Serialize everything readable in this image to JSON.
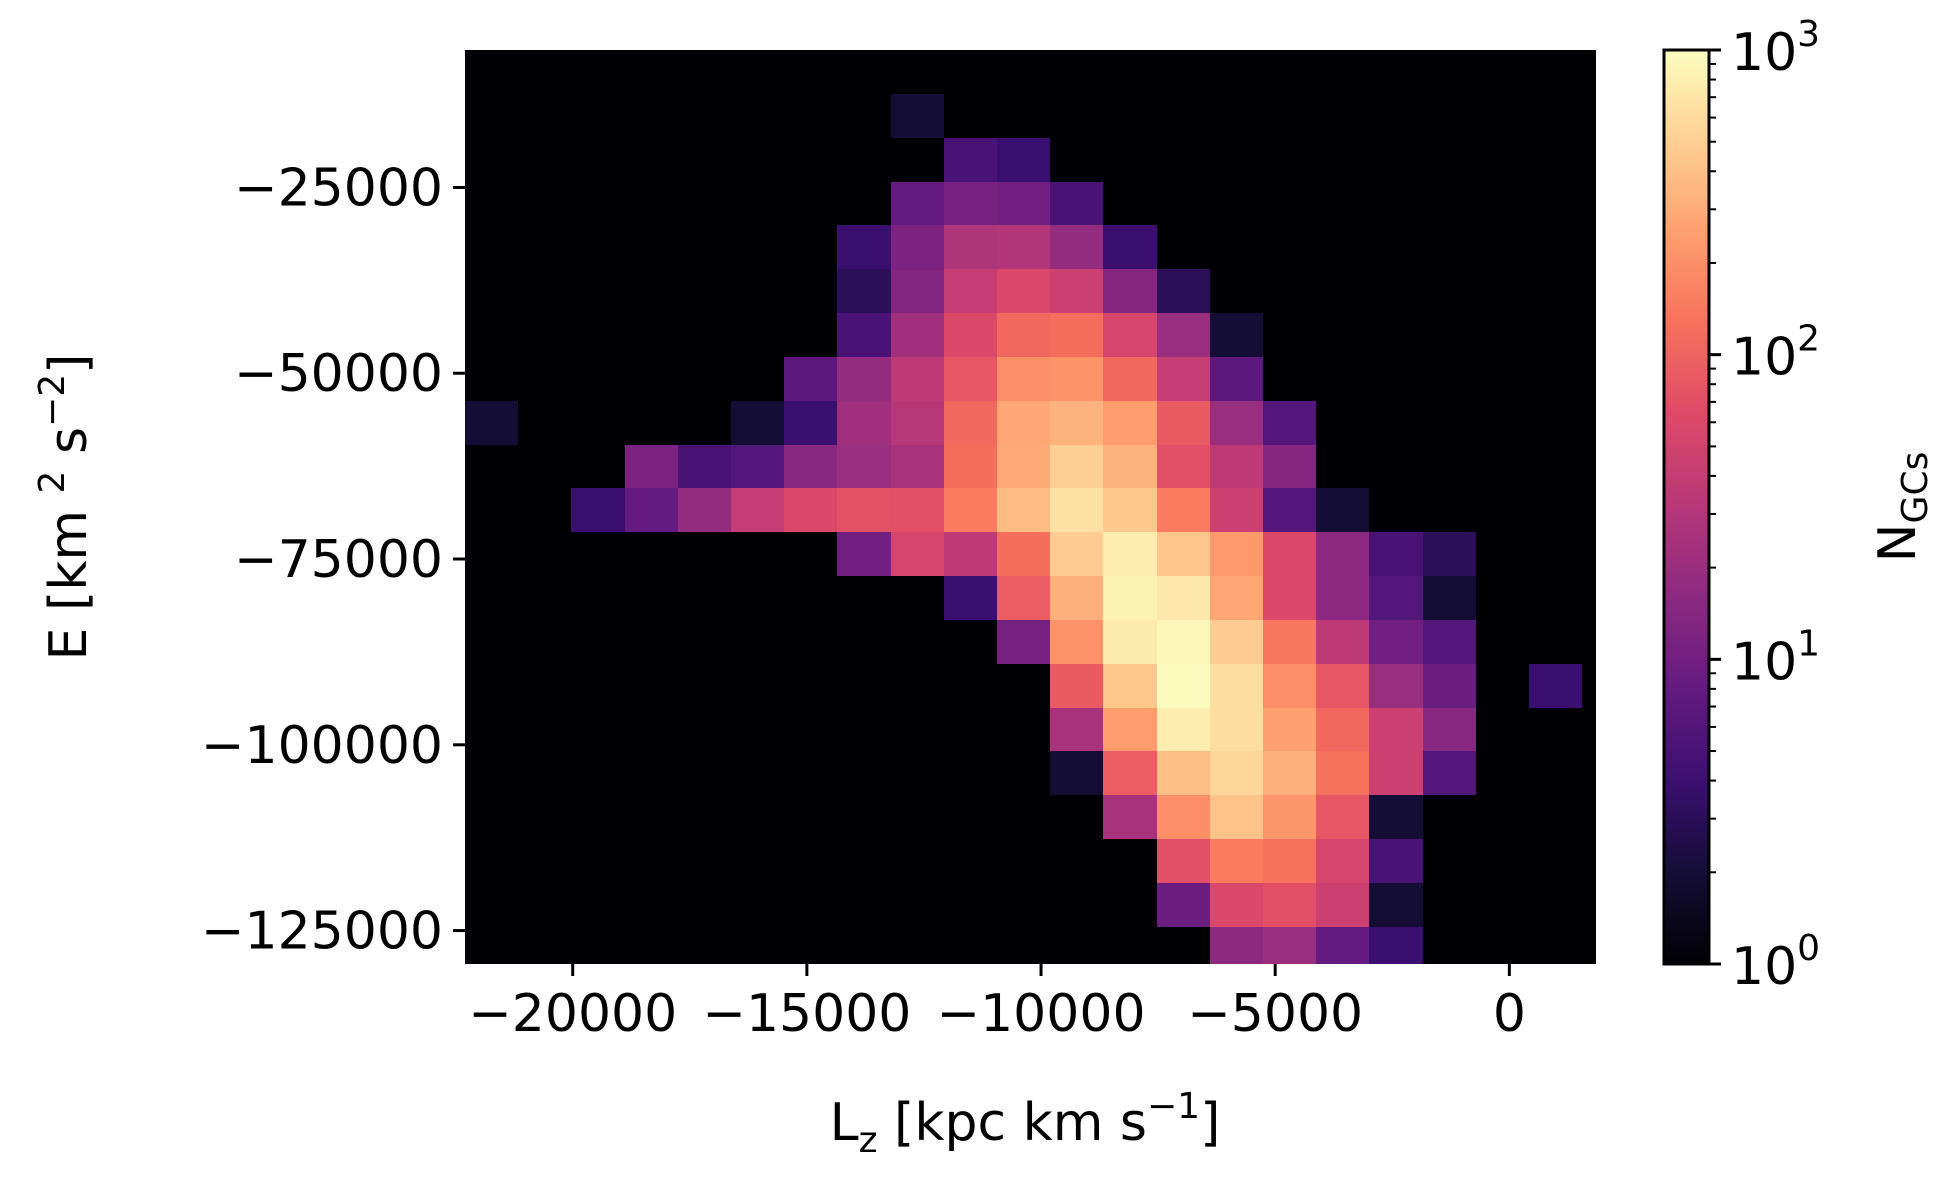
{
  "chart_data": {
    "type": "heatmap",
    "title": "",
    "xlabel": {
      "main": "L",
      "sub": "z",
      "rest": " [kpc km s",
      "sup": "−1",
      "end": "]"
    },
    "ylabel": {
      "main": "E [km ",
      "sup1": "2",
      "mid": " s",
      "sup2": "−2",
      "end": "]"
    },
    "colorbar_label": {
      "main": "N",
      "sub": "GCs"
    },
    "colorbar": {
      "scale": "log",
      "vmin": 1,
      "vmax": 1000,
      "colormap": "magma"
    },
    "xlim": [
      -22300,
      1850
    ],
    "ylim": [
      -129500,
      -6500
    ],
    "x_ticks": [
      {
        "value": -20000,
        "label": "−20000"
      },
      {
        "value": -15000,
        "label": "−15000"
      },
      {
        "value": -10000,
        "label": "−10000"
      },
      {
        "value": -5000,
        "label": "−5000"
      },
      {
        "value": 0,
        "label": "0"
      }
    ],
    "y_ticks": [
      {
        "value": -25000,
        "label": "−25000"
      },
      {
        "value": -50000,
        "label": "−50000"
      },
      {
        "value": -75000,
        "label": "−75000"
      },
      {
        "value": -100000,
        "label": "−100000"
      },
      {
        "value": -125000,
        "label": "−125000"
      }
    ],
    "colorbar_ticks": [
      {
        "value": 1,
        "base": "10",
        "exp": "0"
      },
      {
        "value": 10,
        "base": "10",
        "exp": "1"
      },
      {
        "value": 100,
        "base": "10",
        "exp": "2"
      },
      {
        "value": 1000,
        "base": "10",
        "exp": "3"
      }
    ],
    "bins": {
      "x_start": -22300,
      "x_step": 1136,
      "y_top": -6500,
      "y_step": 5900,
      "counts": [
        [
          0,
          0,
          0,
          0,
          0,
          0,
          0,
          0,
          0,
          0,
          0,
          0,
          0,
          0,
          0,
          0,
          0,
          0,
          0,
          0,
          0,
          0
        ],
        [
          0,
          0,
          0,
          0,
          0,
          0,
          0,
          0,
          2,
          0,
          0,
          0,
          0,
          0,
          0,
          0,
          0,
          0,
          0,
          0,
          0,
          0
        ],
        [
          0,
          0,
          0,
          0,
          0,
          0,
          0,
          0,
          0,
          5,
          4,
          0,
          0,
          0,
          0,
          0,
          0,
          0,
          0,
          0,
          0,
          0
        ],
        [
          0,
          0,
          0,
          0,
          0,
          0,
          0,
          0,
          8,
          11,
          10,
          5,
          0,
          0,
          0,
          0,
          0,
          0,
          0,
          0,
          0,
          0
        ],
        [
          0,
          0,
          0,
          0,
          0,
          0,
          0,
          4,
          12,
          28,
          30,
          18,
          4,
          0,
          0,
          0,
          0,
          0,
          0,
          0,
          0,
          0
        ],
        [
          0,
          0,
          0,
          0,
          0,
          0,
          0,
          3,
          13,
          40,
          60,
          45,
          14,
          3,
          0,
          0,
          0,
          0,
          0,
          0,
          0,
          0
        ],
        [
          0,
          0,
          0,
          0,
          0,
          0,
          0,
          5,
          22,
          60,
          110,
          120,
          55,
          20,
          2,
          0,
          0,
          0,
          0,
          0,
          0,
          0
        ],
        [
          0,
          0,
          0,
          0,
          0,
          0,
          7,
          18,
          35,
          80,
          200,
          210,
          110,
          40,
          7,
          0,
          0,
          0,
          0,
          0,
          0,
          0
        ],
        [
          2,
          0,
          0,
          0,
          0,
          2,
          4,
          22,
          32,
          110,
          280,
          330,
          240,
          85,
          20,
          6,
          0,
          0,
          0,
          0,
          0,
          0
        ],
        [
          0,
          0,
          0,
          12,
          5,
          6,
          15,
          20,
          25,
          120,
          300,
          500,
          330,
          70,
          35,
          14,
          0,
          0,
          0,
          0,
          0,
          0
        ],
        [
          0,
          0,
          4,
          8,
          18,
          40,
          60,
          75,
          70,
          150,
          380,
          650,
          450,
          150,
          45,
          6,
          2,
          0,
          0,
          0,
          0,
          0
        ],
        [
          0,
          0,
          0,
          0,
          0,
          0,
          0,
          10,
          55,
          35,
          120,
          480,
          780,
          440,
          230,
          60,
          16,
          5,
          3,
          0,
          0,
          0
        ],
        [
          0,
          0,
          0,
          0,
          0,
          0,
          0,
          0,
          0,
          4,
          90,
          320,
          850,
          720,
          280,
          60,
          16,
          6,
          2,
          0,
          0,
          0
        ],
        [
          0,
          0,
          0,
          0,
          0,
          0,
          0,
          0,
          0,
          0,
          11,
          210,
          760,
          900,
          480,
          140,
          35,
          10,
          6,
          1,
          0,
          0
        ],
        [
          0,
          0,
          0,
          0,
          0,
          0,
          0,
          0,
          0,
          0,
          0,
          85,
          450,
          950,
          620,
          200,
          80,
          20,
          9,
          1,
          4,
          0
        ],
        [
          0,
          0,
          0,
          0,
          0,
          0,
          0,
          0,
          0,
          0,
          0,
          25,
          240,
          800,
          620,
          260,
          110,
          45,
          15,
          0,
          0,
          0
        ],
        [
          0,
          0,
          0,
          0,
          0,
          0,
          0,
          0,
          0,
          0,
          0,
          2,
          90,
          400,
          560,
          320,
          130,
          45,
          6,
          0,
          0,
          0
        ],
        [
          0,
          0,
          0,
          0,
          0,
          0,
          0,
          0,
          0,
          0,
          0,
          0,
          25,
          200,
          420,
          220,
          80,
          2,
          0,
          0,
          0,
          0
        ],
        [
          0,
          0,
          0,
          0,
          0,
          0,
          0,
          0,
          0,
          0,
          0,
          0,
          0,
          70,
          150,
          130,
          55,
          5,
          0,
          0,
          0,
          0
        ],
        [
          0,
          0,
          0,
          0,
          0,
          0,
          0,
          0,
          0,
          0,
          0,
          0,
          0,
          9,
          60,
          70,
          45,
          2,
          0,
          0,
          0,
          0
        ],
        [
          0,
          0,
          0,
          0,
          0,
          0,
          0,
          0,
          0,
          0,
          0,
          0,
          0,
          0,
          16,
          20,
          8,
          4,
          0,
          0,
          0,
          0
        ],
        [
          0,
          0,
          0,
          0,
          0,
          0,
          0,
          0,
          0,
          0,
          0,
          0,
          0,
          0,
          1,
          6,
          4,
          2,
          0,
          0,
          0,
          0
        ]
      ]
    }
  }
}
